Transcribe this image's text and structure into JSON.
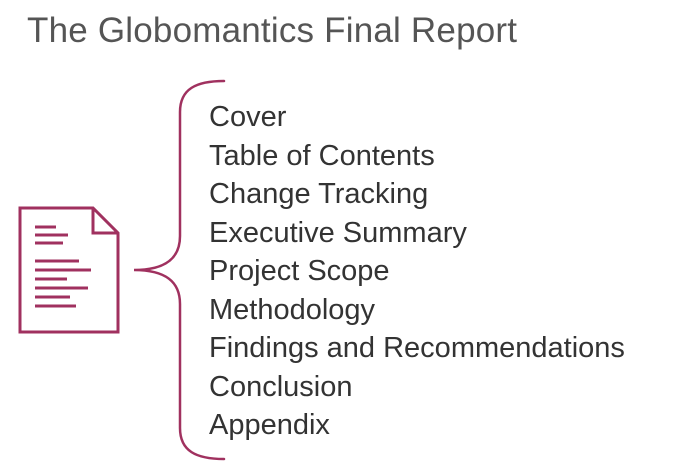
{
  "title": "The Globomantics Final Report",
  "colors": {
    "accent": "#a0315f",
    "title_text": "#555555",
    "item_text": "#333333"
  },
  "icons": {
    "document": "document-icon",
    "brace": "curly-brace"
  },
  "sections": [
    "Cover",
    "Table of Contents",
    "Change Tracking",
    "Executive Summary",
    "Project Scope",
    "Methodology",
    "Findings and Recommendations",
    "Conclusion",
    "Appendix"
  ]
}
